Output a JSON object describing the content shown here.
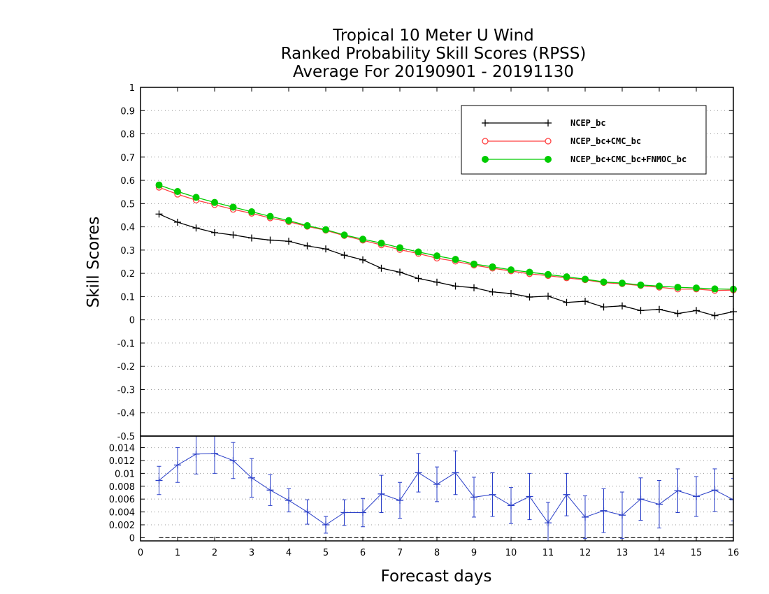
{
  "title_lines": [
    "Tropical 10 Meter U Wind",
    "Ranked Probability Skill Scores (RPSS)",
    "Average For 20190901 - 20191130"
  ],
  "chart_data": [
    {
      "type": "line",
      "title": "Tropical 10 Meter U Wind / Ranked Probability Skill Scores (RPSS) / Average For 20190901 - 20191130",
      "xlabel": "Forecast days",
      "ylabel": "Skill Scores",
      "xlim": [
        0,
        16
      ],
      "ylim": [
        -0.5,
        1
      ],
      "yticks": [
        "-0.5",
        "-0.4",
        "-0.3",
        "-0.2",
        "-0.1",
        "0",
        "0.1",
        "0.2",
        "0.3",
        "0.4",
        "0.5",
        "0.6",
        "0.7",
        "0.8",
        "0.9",
        "1"
      ],
      "grid": true,
      "legend": "top-right",
      "x": [
        0.5,
        1,
        1.5,
        2,
        2.5,
        3,
        3.5,
        4,
        4.5,
        5,
        5.5,
        6,
        6.5,
        7,
        7.5,
        8,
        8.5,
        9,
        9.5,
        10,
        10.5,
        11,
        11.5,
        12,
        12.5,
        13,
        13.5,
        14,
        14.5,
        15,
        15.5,
        16
      ],
      "series": [
        {
          "name": "NCEP_bc",
          "color": "#000000",
          "marker": "plus",
          "values": [
            0.455,
            0.42,
            0.395,
            0.375,
            0.365,
            0.352,
            0.343,
            0.338,
            0.318,
            0.305,
            0.278,
            0.258,
            0.222,
            0.205,
            0.178,
            0.162,
            0.145,
            0.138,
            0.12,
            0.113,
            0.098,
            0.102,
            0.075,
            0.08,
            0.055,
            0.06,
            0.04,
            0.045,
            0.027,
            0.04,
            0.018,
            0.035
          ]
        },
        {
          "name": "NCEP_bc+CMC_bc",
          "color": "#ff4040",
          "marker": "open-circle",
          "values": [
            0.57,
            0.54,
            0.515,
            0.495,
            0.475,
            0.458,
            0.438,
            0.422,
            0.402,
            0.385,
            0.362,
            0.342,
            0.322,
            0.302,
            0.285,
            0.265,
            0.252,
            0.235,
            0.222,
            0.21,
            0.198,
            0.19,
            0.18,
            0.172,
            0.16,
            0.155,
            0.147,
            0.14,
            0.132,
            0.132,
            0.126,
            0.128
          ]
        },
        {
          "name": "NCEP_bc+CMC_bc+FNMOC_bc",
          "color": "#00cc00",
          "marker": "filled-circle",
          "values": [
            0.58,
            0.552,
            0.527,
            0.505,
            0.485,
            0.465,
            0.445,
            0.427,
            0.405,
            0.388,
            0.365,
            0.347,
            0.33,
            0.31,
            0.292,
            0.275,
            0.26,
            0.24,
            0.228,
            0.215,
            0.205,
            0.195,
            0.185,
            0.175,
            0.163,
            0.158,
            0.15,
            0.145,
            0.14,
            0.137,
            0.133,
            0.132
          ]
        }
      ]
    },
    {
      "type": "line",
      "title": "",
      "xlabel": "Forecast days",
      "ylabel": "",
      "xlim": [
        0,
        16
      ],
      "ylim": [
        -0.0005,
        0.0158
      ],
      "xticks": [
        "0",
        "1",
        "2",
        "3",
        "4",
        "5",
        "6",
        "7",
        "8",
        "9",
        "10",
        "11",
        "12",
        "13",
        "14",
        "15",
        "16"
      ],
      "yticks": [
        "0",
        "0.002",
        "0.004",
        "0.006",
        "0.008",
        "0.01",
        "0.012",
        "0.014"
      ],
      "grid": true,
      "x": [
        0.5,
        1,
        1.5,
        2,
        2.5,
        3,
        3.5,
        4,
        4.5,
        5,
        5.5,
        6,
        6.5,
        7,
        7.5,
        8,
        8.5,
        9,
        9.5,
        10,
        10.5,
        11,
        11.5,
        12,
        12.5,
        13,
        13.5,
        14,
        14.5,
        15,
        15.5,
        16
      ],
      "series": [
        {
          "name": "",
          "color": "#2a3fc8",
          "marker": "plus",
          "values": [
            0.0089,
            0.0113,
            0.013,
            0.0131,
            0.012,
            0.0093,
            0.0074,
            0.0058,
            0.004,
            0.002,
            0.0039,
            0.0039,
            0.0068,
            0.0058,
            0.0101,
            0.0083,
            0.0101,
            0.0063,
            0.0067,
            0.005,
            0.0064,
            0.0023,
            0.0067,
            0.0032,
            0.0042,
            0.0035,
            0.006,
            0.0052,
            0.0073,
            0.0064,
            0.0074,
            0.0059
          ],
          "error": [
            0.0022,
            0.0027,
            0.0031,
            0.0031,
            0.0028,
            0.003,
            0.0024,
            0.0018,
            0.0019,
            0.0013,
            0.002,
            0.0022,
            0.0029,
            0.0028,
            0.003,
            0.0027,
            0.0034,
            0.0031,
            0.0034,
            0.0028,
            0.0036,
            0.0032,
            0.0033,
            0.0033,
            0.0034,
            0.0036,
            0.0033,
            0.0037,
            0.0034,
            0.0031,
            0.0033,
            0.0033
          ]
        }
      ],
      "reference_line": 0
    }
  ]
}
